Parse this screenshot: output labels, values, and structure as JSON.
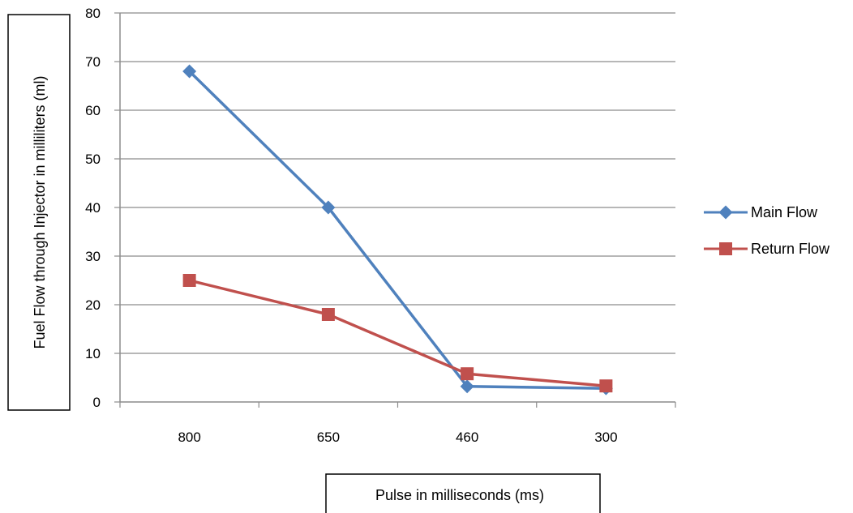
{
  "chart_data": {
    "type": "line",
    "categories": [
      "800",
      "650",
      "460",
      "300"
    ],
    "series": [
      {
        "name": "Main Flow",
        "values": [
          68,
          40,
          3.2,
          2.8
        ],
        "color": "#4F81BD",
        "marker": "diamond"
      },
      {
        "name": "Return Flow",
        "values": [
          25,
          18,
          5.8,
          3.3
        ],
        "color": "#C0504D",
        "marker": "square"
      }
    ],
    "title": "",
    "xlabel": "Pulse in milliseconds (ms)",
    "ylabel": "Fuel Flow through Injector in milliliters (ml)",
    "ylim": [
      0,
      80
    ],
    "yticks": [
      "0",
      "10",
      "20",
      "30",
      "40",
      "50",
      "60",
      "70",
      "80"
    ],
    "grid": true,
    "legend_position": "right"
  }
}
